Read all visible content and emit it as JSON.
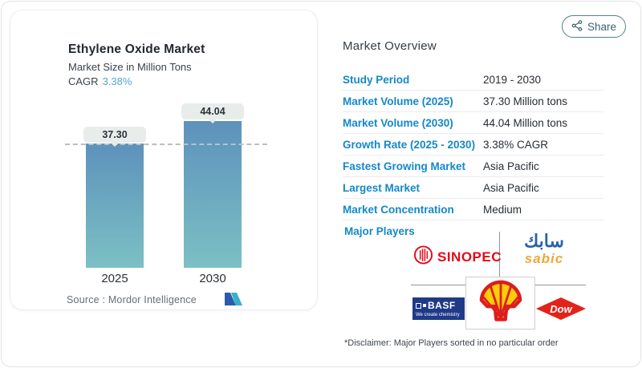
{
  "share": {
    "label": "Share"
  },
  "left_card": {
    "title": "Ethylene Oxide Market",
    "subtitle": "Market Size in Million Tons",
    "cagr_label": "CAGR",
    "cagr_value": "3.38%",
    "source_label": "Source :  Mordor Intelligence"
  },
  "chart_data": {
    "type": "bar",
    "categories": [
      "2025",
      "2030"
    ],
    "values": [
      37.3,
      44.04
    ],
    "value_labels": [
      "37.30",
      "44.04"
    ],
    "title": "Ethylene Oxide Market",
    "subtitle": "Market Size in Million Tons",
    "cagr": "3.38%",
    "ylim": [
      0,
      50
    ],
    "reference_line_value": 37.3,
    "grid": false,
    "bar_color_top": "#5d92bc",
    "bar_color_bottom": "#7cc0c4"
  },
  "overview": {
    "title": "Market Overview",
    "rows": [
      {
        "label": "Study Period",
        "value": "2019 - 2030"
      },
      {
        "label": "Market Volume (2025)",
        "value": "37.30 Million tons"
      },
      {
        "label": "Market Volume (2030)",
        "value": "44.04 Million tons"
      },
      {
        "label": "Growth Rate (2025 - 2030)",
        "value": "3.38% CAGR"
      },
      {
        "label": "Fastest Growing Market",
        "value": "Asia Pacific"
      },
      {
        "label": "Largest Market",
        "value": "Asia Pacific"
      },
      {
        "label": "Market Concentration",
        "value": "Medium"
      }
    ],
    "major_players_label": "Major Players",
    "major_players": [
      "SINOPEC",
      "SABIC",
      "BASF",
      "Shell",
      "Dow"
    ],
    "disclaimer": "*Disclaimer: Major Players sorted in no particular order"
  },
  "logos": {
    "sinopec_text": "SINOPEC",
    "sabic_arabic": "سابك",
    "sabic_text": "sabic",
    "basf_text": "BASF",
    "basf_tagline": "We create chemistry",
    "dow_text": "Dow"
  },
  "colors": {
    "accent_blue": "#1488c8",
    "cagr_blue": "#53a7d3",
    "sinopec_red": "#e10b17",
    "sabic_blue": "#2a61ab",
    "sabic_orange": "#eda83c",
    "basf_navy": "#203a89",
    "dow_red": "#e2231a",
    "shell_red": "#dd1d21",
    "shell_yellow": "#fbce07",
    "share_teal": "#39646f"
  }
}
